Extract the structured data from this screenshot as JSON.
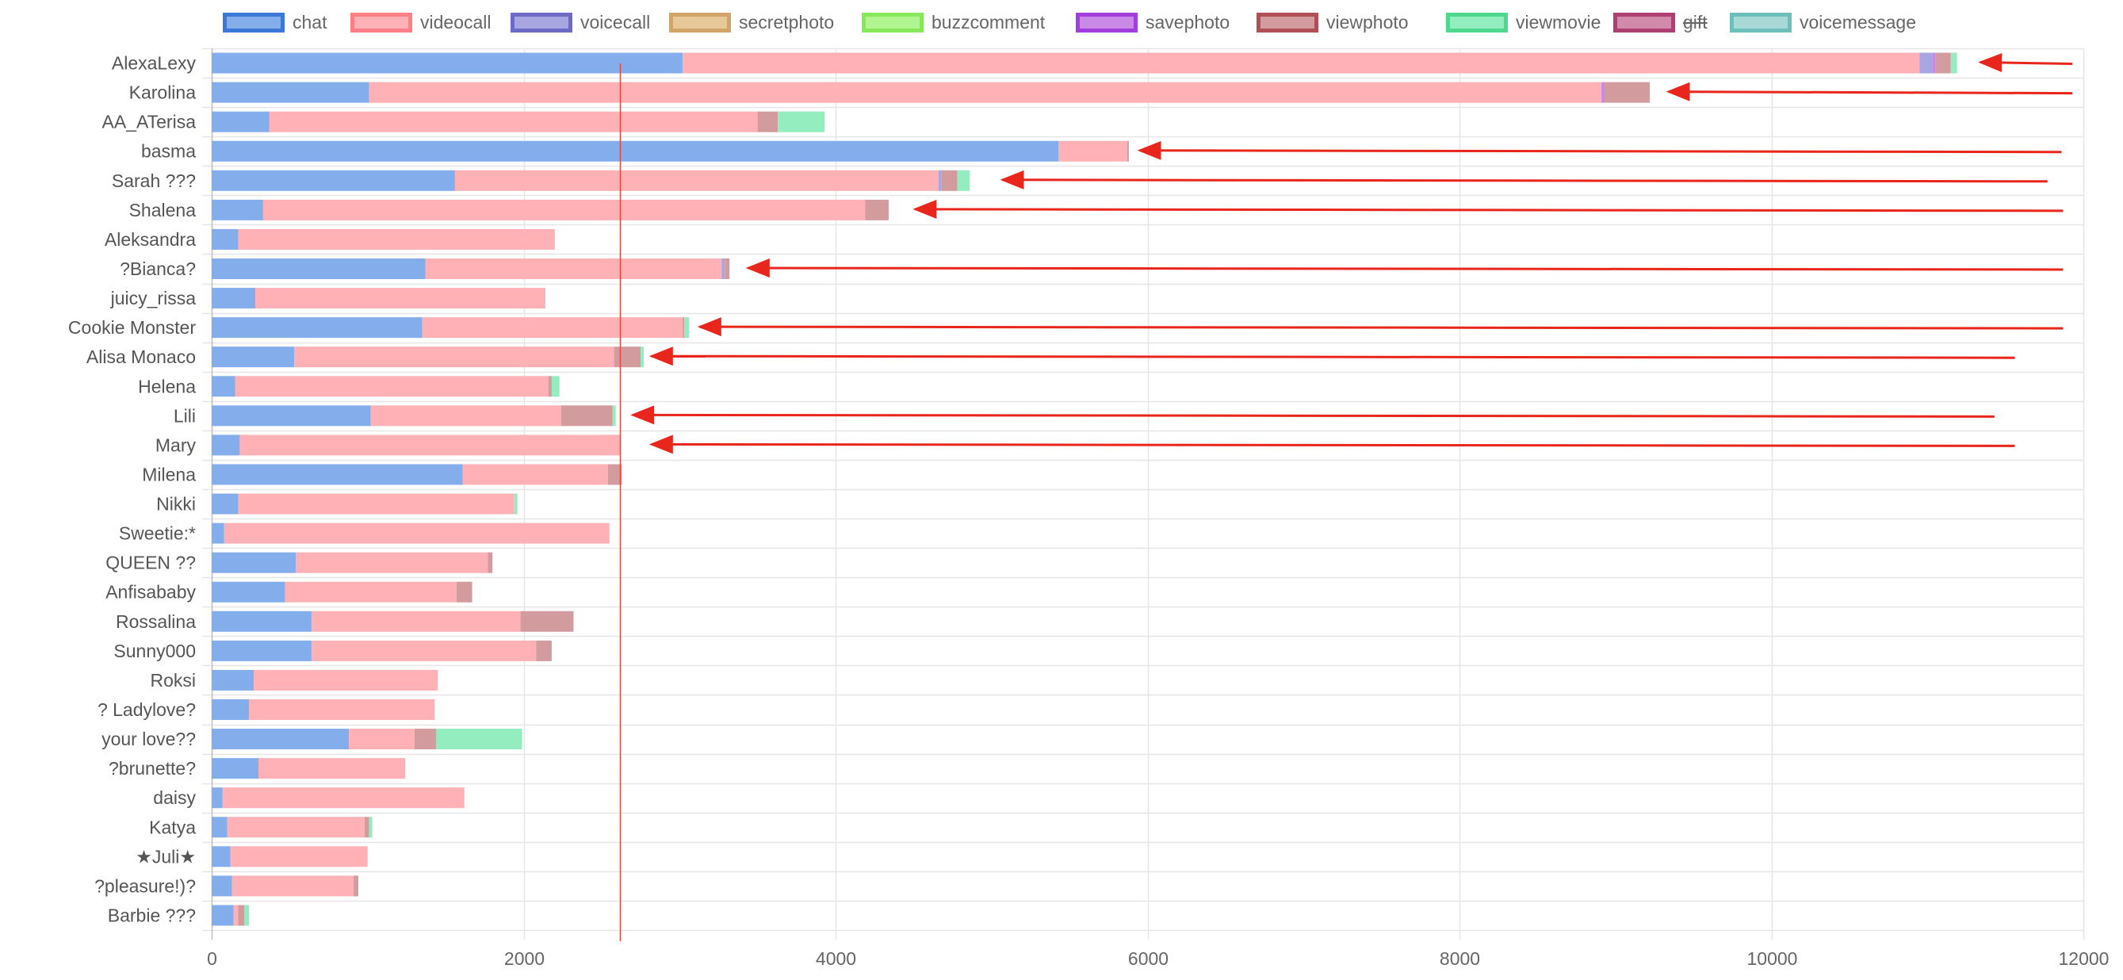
{
  "chart_data": {
    "type": "bar",
    "orientation": "horizontal",
    "stacked": true,
    "title": "",
    "xlabel": "",
    "ylabel": "",
    "xlim": [
      0,
      12000
    ],
    "x_ticks": [
      0,
      2000,
      4000,
      6000,
      8000,
      10000,
      12000
    ],
    "grid": true,
    "legend_position": "top",
    "categories": [
      "AlexaLexy",
      "Karolina",
      "AA_ATerisa",
      "basma",
      "Sarah ???",
      "Shalena",
      "Aleksandra",
      "?Bianca?",
      "juicy_rissa",
      "Cookie Monster",
      "Alisa Monaco",
      "Helena",
      "Lili",
      "Mary",
      "Milena",
      "Nikki",
      "Sweetie:*",
      "QUEEN ??",
      "Anfisababy",
      "Rossalina",
      "Sunny000",
      "Roksi",
      "? Ladylove?",
      "your love??",
      "?brunette?",
      "daisy",
      "Katya",
      "★Juli★",
      "?pleasure!)?",
      "Barbie ???"
    ],
    "series": [
      {
        "name": "chat",
        "color": "#84ADEB",
        "border": "#3C78D8",
        "values": [
          3020,
          1010,
          370,
          5430,
          1560,
          330,
          170,
          1370,
          280,
          1350,
          530,
          150,
          1020,
          180,
          1610,
          170,
          80,
          540,
          470,
          640,
          640,
          270,
          240,
          880,
          300,
          70,
          100,
          120,
          130,
          140
        ]
      },
      {
        "name": "videocall",
        "color": "#FFB1B5",
        "border": "#FF7F87",
        "values": [
          7930,
          7900,
          3130,
          440,
          3100,
          3860,
          2030,
          1900,
          1860,
          1670,
          2050,
          2010,
          1220,
          2440,
          930,
          1770,
          2470,
          1230,
          1100,
          1340,
          1440,
          1180,
          1190,
          420,
          940,
          1550,
          880,
          880,
          780,
          30
        ]
      },
      {
        "name": "voicecall",
        "color": "#A8A6E0",
        "border": "#6D6AC6",
        "values": [
          80,
          0,
          0,
          0,
          20,
          0,
          0,
          20,
          0,
          0,
          0,
          0,
          0,
          0,
          0,
          0,
          0,
          0,
          0,
          0,
          0,
          0,
          0,
          0,
          0,
          0,
          0,
          0,
          0,
          0
        ]
      },
      {
        "name": "secretphoto",
        "color": "#E7C899",
        "border": "#D2A46A",
        "values": [
          0,
          0,
          0,
          0,
          0,
          0,
          0,
          0,
          0,
          0,
          0,
          0,
          0,
          0,
          0,
          0,
          0,
          0,
          0,
          0,
          0,
          0,
          0,
          0,
          0,
          0,
          0,
          0,
          0,
          0
        ]
      },
      {
        "name": "buzzcomment",
        "color": "#B0F590",
        "border": "#86E85A",
        "values": [
          0,
          0,
          0,
          0,
          0,
          0,
          0,
          0,
          0,
          0,
          0,
          0,
          0,
          0,
          0,
          0,
          0,
          0,
          0,
          0,
          0,
          0,
          0,
          0,
          0,
          0,
          0,
          0,
          0,
          0
        ]
      },
      {
        "name": "savephoto",
        "color": "#C88AE6",
        "border": "#A23EDB",
        "values": [
          20,
          20,
          0,
          0,
          0,
          0,
          0,
          0,
          0,
          0,
          0,
          0,
          0,
          0,
          0,
          0,
          0,
          0,
          0,
          0,
          0,
          0,
          0,
          0,
          0,
          0,
          0,
          0,
          0,
          0
        ]
      },
      {
        "name": "viewphoto",
        "color": "#D29B9E",
        "border": "#B04F55",
        "values": [
          100,
          290,
          130,
          10,
          100,
          150,
          0,
          30,
          0,
          10,
          170,
          20,
          330,
          0,
          90,
          0,
          0,
          30,
          100,
          340,
          100,
          0,
          0,
          140,
          0,
          0,
          30,
          0,
          30,
          40
        ]
      },
      {
        "name": "viewmovie",
        "color": "#94EDBE",
        "border": "#4ED88E",
        "values": [
          40,
          0,
          300,
          0,
          80,
          0,
          0,
          0,
          0,
          30,
          20,
          50,
          20,
          0,
          0,
          20,
          0,
          0,
          0,
          0,
          0,
          0,
          0,
          550,
          0,
          0,
          20,
          0,
          0,
          30
        ]
      },
      {
        "name": "gift",
        "color": "#D18AAA",
        "border": "#AE3F72",
        "hidden": true,
        "values": [
          0,
          0,
          0,
          0,
          0,
          0,
          0,
          0,
          0,
          0,
          0,
          0,
          0,
          0,
          0,
          0,
          0,
          0,
          0,
          0,
          0,
          0,
          0,
          0,
          0,
          0,
          0,
          0,
          0,
          0
        ]
      },
      {
        "name": "voicemessage",
        "color": "#A8D9D6",
        "border": "#6CBFBA",
        "values": [
          0,
          0,
          0,
          0,
          0,
          0,
          0,
          0,
          0,
          0,
          0,
          0,
          0,
          0,
          0,
          0,
          0,
          0,
          0,
          0,
          0,
          0,
          0,
          0,
          0,
          0,
          0,
          0,
          0,
          0
        ]
      }
    ],
    "reference_line": {
      "x": 2620,
      "color": "#E8483B"
    },
    "annotations": {
      "arrow_color": "#E8261B",
      "arrows": [
        {
          "category": "AlexaLexy",
          "from_x": 11930,
          "to_x": 11340
        },
        {
          "category": "Karolina",
          "from_x": 11930,
          "to_x": 9340
        },
        {
          "category": "basma",
          "from_x": 11860,
          "to_x": 5950
        },
        {
          "category": "Sarah ???",
          "from_x": 11770,
          "to_x": 5070
        },
        {
          "category": "Shalena",
          "from_x": 11870,
          "to_x": 4510
        },
        {
          "category": "?Bianca?",
          "from_x": 11870,
          "to_x": 3440
        },
        {
          "category": "Cookie Monster",
          "from_x": 11870,
          "to_x": 3130
        },
        {
          "category": "Alisa Monaco",
          "from_x": 11560,
          "to_x": 2820
        },
        {
          "category": "Lili",
          "from_x": 11430,
          "to_x": 2700
        },
        {
          "category": "Mary",
          "from_x": 11560,
          "to_x": 2820
        }
      ]
    }
  }
}
